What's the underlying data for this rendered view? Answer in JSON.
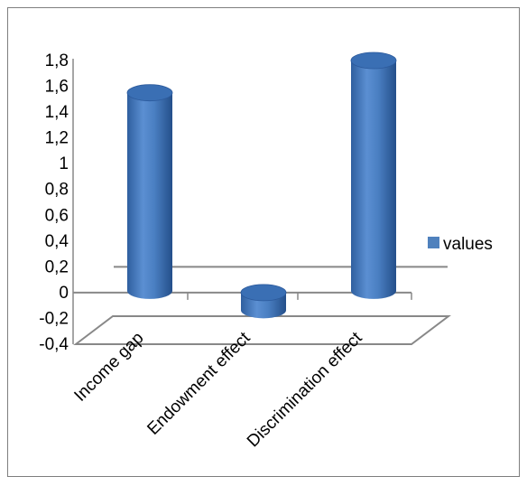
{
  "chart_data": {
    "type": "bar",
    "style": "3d-cylinder",
    "categories": [
      "Income gap",
      "Endowment effect",
      "Discrimination effect"
    ],
    "series": [
      {
        "name": "values",
        "values": [
          1.55,
          -0.15,
          1.8
        ]
      }
    ],
    "y_ticks": [
      "1,8",
      "1,6",
      "1,4",
      "1,2",
      "1",
      "0,8",
      "0,6",
      "0,4",
      "0,2",
      "0",
      "-0,2",
      "-0,4"
    ],
    "ylim": [
      -0.4,
      1.8
    ],
    "grid": false,
    "legend_position": "right",
    "colors": {
      "bar": "#4f81bd",
      "bar_dark": "#2c5a9c",
      "bar_light": "#8fb4e3",
      "axis": "#888888"
    }
  }
}
